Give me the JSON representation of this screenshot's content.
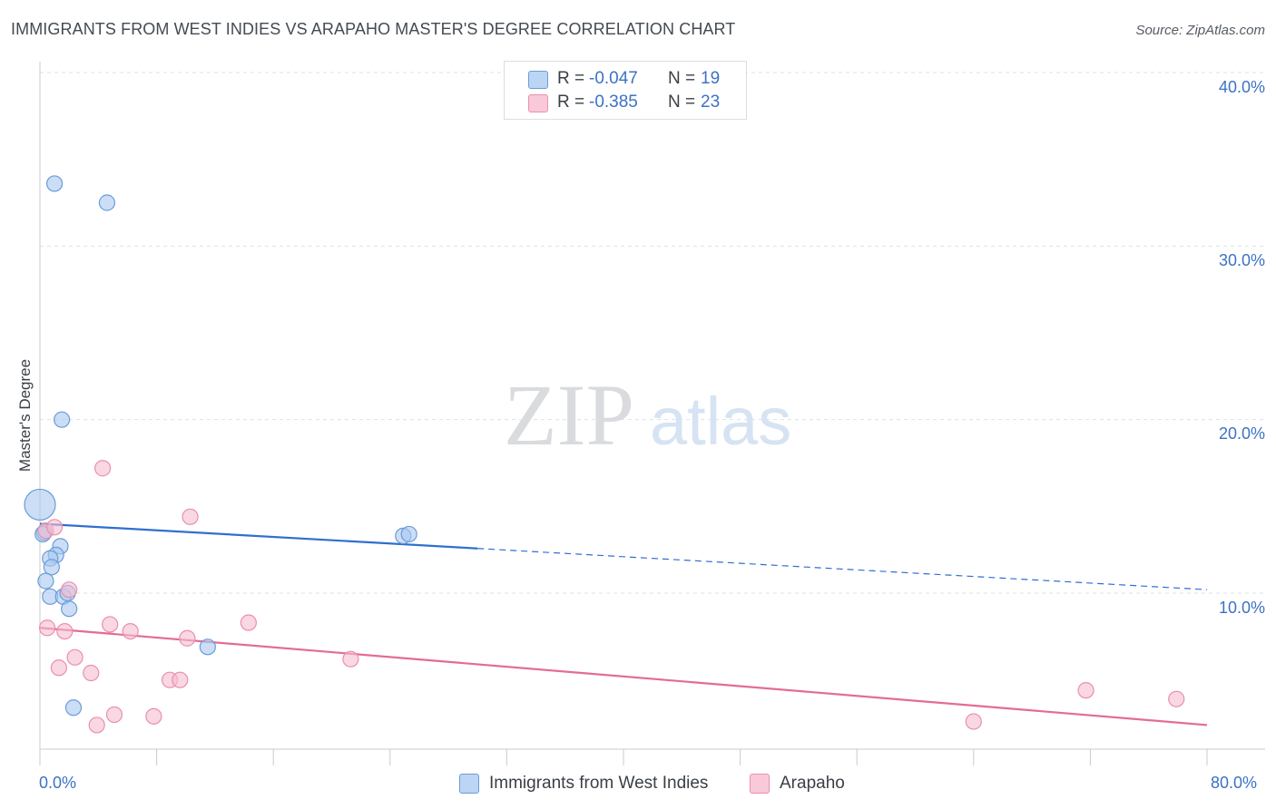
{
  "header": {
    "title": "IMMIGRANTS FROM WEST INDIES VS ARAPAHO MASTER'S DEGREE CORRELATION CHART",
    "source": "Source: ZipAtlas.com"
  },
  "watermark": {
    "zip": "ZIP",
    "atlas": "atlas"
  },
  "legend_top": [
    {
      "r_label": "R =",
      "r_value": "-0.047",
      "n_label": "N =",
      "n_value": "19"
    },
    {
      "r_label": "R =",
      "r_value": "-0.385",
      "n_label": "N =",
      "n_value": "23"
    }
  ],
  "legend_bottom": [
    {
      "label": "Immigrants from West Indies"
    },
    {
      "label": "Arapaho"
    }
  ],
  "colors": {
    "blue_fill": "#a9c8f0",
    "blue_stroke": "#6b9bd8",
    "blue_line": "#2f6fd0",
    "pink_fill": "#f5bcd0",
    "pink_stroke": "#e98fae",
    "pink_line": "#e46b97",
    "grid": "#dde1e6",
    "tick_text": "#3c72c4"
  },
  "chart_data": {
    "type": "scatter",
    "title": "IMMIGRANTS FROM WEST INDIES VS ARAPAHO MASTER'S DEGREE CORRELATION CHART",
    "xlabel": "",
    "ylabel": "Master's Degree",
    "xlim": [
      0,
      80
    ],
    "ylim": [
      0,
      42
    ],
    "x_tick_labels": [
      "0.0%",
      "80.0%"
    ],
    "y_ticks": [
      10,
      20,
      30,
      40
    ],
    "y_tick_labels": [
      "10.0%",
      "20.0%",
      "30.0%",
      "40.0%"
    ],
    "grid": true,
    "legend_position": "top-center",
    "series": [
      {
        "name": "Immigrants from West Indies",
        "color": "blue",
        "r": -0.047,
        "n": 19,
        "points": [
          {
            "x": 0.0,
            "y": 15.1,
            "size": "large"
          },
          {
            "x": 0.3,
            "y": 13.5
          },
          {
            "x": 1.0,
            "y": 33.6
          },
          {
            "x": 4.6,
            "y": 32.5
          },
          {
            "x": 1.5,
            "y": 20.0
          },
          {
            "x": 1.4,
            "y": 12.7
          },
          {
            "x": 1.1,
            "y": 12.2
          },
          {
            "x": 0.7,
            "y": 12.0
          },
          {
            "x": 0.8,
            "y": 11.5
          },
          {
            "x": 0.4,
            "y": 10.7
          },
          {
            "x": 0.7,
            "y": 9.8
          },
          {
            "x": 1.6,
            "y": 9.8
          },
          {
            "x": 1.9,
            "y": 10.0
          },
          {
            "x": 2.0,
            "y": 9.1
          },
          {
            "x": 2.3,
            "y": 3.4
          },
          {
            "x": 11.5,
            "y": 6.9
          },
          {
            "x": 24.9,
            "y": 13.3
          },
          {
            "x": 25.3,
            "y": 13.4
          },
          {
            "x": 0.2,
            "y": 13.4
          }
        ],
        "trend": {
          "x_start": 0,
          "y_start": 14.0,
          "x_solid_end": 30,
          "x_end": 80,
          "y_end": 10.2
        }
      },
      {
        "name": "Arapaho",
        "color": "pink",
        "r": -0.385,
        "n": 23,
        "points": [
          {
            "x": 0.4,
            "y": 13.6
          },
          {
            "x": 1.0,
            "y": 13.8
          },
          {
            "x": 4.3,
            "y": 17.2
          },
          {
            "x": 10.3,
            "y": 14.4
          },
          {
            "x": 2.0,
            "y": 10.2
          },
          {
            "x": 0.5,
            "y": 8.0
          },
          {
            "x": 1.7,
            "y": 7.8
          },
          {
            "x": 4.8,
            "y": 8.2
          },
          {
            "x": 6.2,
            "y": 7.8
          },
          {
            "x": 10.1,
            "y": 7.4
          },
          {
            "x": 14.3,
            "y": 8.3
          },
          {
            "x": 2.4,
            "y": 6.3
          },
          {
            "x": 1.3,
            "y": 5.7
          },
          {
            "x": 3.5,
            "y": 5.4
          },
          {
            "x": 8.9,
            "y": 5.0
          },
          {
            "x": 9.6,
            "y": 5.0
          },
          {
            "x": 21.3,
            "y": 6.2
          },
          {
            "x": 5.1,
            "y": 3.0
          },
          {
            "x": 7.8,
            "y": 2.9
          },
          {
            "x": 3.9,
            "y": 2.4
          },
          {
            "x": 64.0,
            "y": 2.6
          },
          {
            "x": 71.7,
            "y": 4.4
          },
          {
            "x": 77.9,
            "y": 3.9
          }
        ],
        "trend": {
          "x_start": 0,
          "y_start": 8.0,
          "x_solid_end": 80,
          "x_end": 80,
          "y_end": 2.4
        }
      }
    ]
  }
}
